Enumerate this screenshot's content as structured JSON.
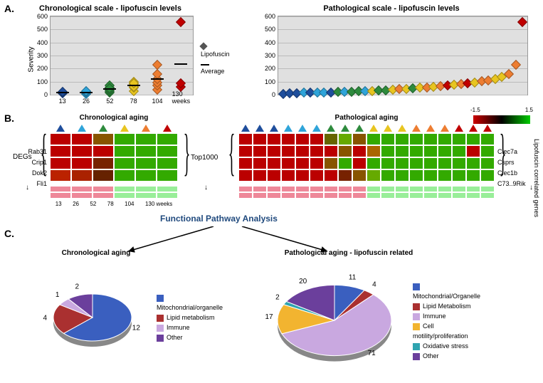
{
  "panels": {
    "a": "A.",
    "b": "B.",
    "c": "C."
  },
  "chartA": {
    "left": {
      "title": "Chronological scale - lipofuscin levels",
      "ylabel": "Severity",
      "ylim": [
        0,
        600
      ],
      "ystep": 100,
      "x_categories": [
        "13",
        "26",
        "52",
        "78",
        "104",
        "130 weeks"
      ],
      "colors": [
        "#1f4e9c",
        "#2fa4d9",
        "#2e8b3d",
        "#e8c520",
        "#ed7d31",
        "#c00000"
      ],
      "points": {
        "0": [
          10,
          14,
          18,
          22
        ],
        "1": [
          8,
          15,
          20,
          25
        ],
        "2": [
          15,
          28,
          40,
          55,
          70,
          48
        ],
        "3": [
          30,
          55,
          80,
          100,
          60,
          90
        ],
        "4": [
          40,
          70,
          95,
          120,
          160,
          230
        ],
        "5": [
          60,
          90,
          555
        ]
      },
      "averages": [
        16,
        17,
        43,
        70,
        120,
        235
      ],
      "legend": {
        "marker": "Lipofuscin",
        "line": "Average"
      }
    },
    "right": {
      "title": "Pathological scale - lipofuscin levels",
      "ylim": [
        0,
        600
      ],
      "ystep": 100,
      "points": [
        {
          "v": 8,
          "c": "#1f4e9c"
        },
        {
          "v": 10,
          "c": "#1f4e9c"
        },
        {
          "v": 12,
          "c": "#1f4e9c"
        },
        {
          "v": 14,
          "c": "#2fa4d9"
        },
        {
          "v": 14,
          "c": "#1f4e9c"
        },
        {
          "v": 15,
          "c": "#2fa4d9"
        },
        {
          "v": 16,
          "c": "#2fa4d9"
        },
        {
          "v": 18,
          "c": "#1f4e9c"
        },
        {
          "v": 20,
          "c": "#2e8b3d"
        },
        {
          "v": 22,
          "c": "#2fa4d9"
        },
        {
          "v": 24,
          "c": "#2e8b3d"
        },
        {
          "v": 26,
          "c": "#2e8b3d"
        },
        {
          "v": 28,
          "c": "#2fa4d9"
        },
        {
          "v": 30,
          "c": "#e8c520"
        },
        {
          "v": 32,
          "c": "#2e8b3d"
        },
        {
          "v": 35,
          "c": "#2e8b3d"
        },
        {
          "v": 38,
          "c": "#e8c520"
        },
        {
          "v": 41,
          "c": "#ed7d31"
        },
        {
          "v": 44,
          "c": "#e8c520"
        },
        {
          "v": 48,
          "c": "#2e8b3d"
        },
        {
          "v": 52,
          "c": "#e8c520"
        },
        {
          "v": 56,
          "c": "#ed7d31"
        },
        {
          "v": 60,
          "c": "#e8c520"
        },
        {
          "v": 65,
          "c": "#ed7d31"
        },
        {
          "v": 70,
          "c": "#c00000"
        },
        {
          "v": 76,
          "c": "#e8c520"
        },
        {
          "v": 82,
          "c": "#ed7d31"
        },
        {
          "v": 88,
          "c": "#c00000"
        },
        {
          "v": 95,
          "c": "#e8c520"
        },
        {
          "v": 102,
          "c": "#ed7d31"
        },
        {
          "v": 110,
          "c": "#ed7d31"
        },
        {
          "v": 120,
          "c": "#e8c520"
        },
        {
          "v": 135,
          "c": "#e8c520"
        },
        {
          "v": 160,
          "c": "#ed7d31"
        },
        {
          "v": 230,
          "c": "#ed7d31"
        },
        {
          "v": 555,
          "c": "#c00000"
        }
      ]
    }
  },
  "panelB": {
    "left_title": "Chronological aging",
    "right_title": "Pathological aging",
    "degs": "DEGs",
    "lipgenes": "Lipofuscin correlated genes",
    "top1000": "Top1000",
    "left_genes": [
      "Rab31",
      "Crip1",
      "Dok2",
      "Fli1"
    ],
    "right_genes": [
      "Clec7a",
      "Csprs",
      "Clec1b",
      "C73..9Rik"
    ],
    "x_labels": [
      "13",
      "26",
      "52",
      "78",
      "104",
      "130 weeks"
    ],
    "tri_colors_left": [
      "#1f4e9c",
      "#2fa4d9",
      "#2e8b3d",
      "#e8c520",
      "#ed7d31",
      "#c00000"
    ],
    "tri_colors_right": [
      "#1f4e9c",
      "#1f4e9c",
      "#1f4e9c",
      "#2fa4d9",
      "#2fa4d9",
      "#2fa4d9",
      "#2e8b3d",
      "#2e8b3d",
      "#2e8b3d",
      "#e8c520",
      "#e8c520",
      "#e8c520",
      "#ed7d31",
      "#ed7d31",
      "#ed7d31",
      "#c00000",
      "#c00000",
      "#c00000"
    ],
    "colorbar": {
      "min": "-1.5",
      "max": "1.5"
    },
    "cell_colors_left": [
      [
        "#b00",
        "#b00",
        "#850",
        "#3a0",
        "#3a0",
        "#3a0"
      ],
      [
        "#b00",
        "#b00",
        "#b00",
        "#3a0",
        "#3a0",
        "#3a0"
      ],
      [
        "#b00",
        "#b00",
        "#720",
        "#3a0",
        "#3a0",
        "#3a0"
      ],
      [
        "#b20",
        "#a20",
        "#620",
        "#3a0",
        "#3a0",
        "#3a0"
      ]
    ],
    "cell_colors_right": [
      [
        "#b00",
        "#b00",
        "#b00",
        "#b00",
        "#b00",
        "#b00",
        "#660",
        "#6a0",
        "#850",
        "#3a0",
        "#3a0",
        "#3a0",
        "#3a0",
        "#3a0",
        "#3a0",
        "#3a0",
        "#3a0",
        "#3a0"
      ],
      [
        "#b00",
        "#b00",
        "#b00",
        "#b00",
        "#b00",
        "#b00",
        "#b00",
        "#850",
        "#b00",
        "#a60",
        "#3a0",
        "#3a0",
        "#3a0",
        "#3a0",
        "#3a0",
        "#3a0",
        "#b00",
        "#3a0"
      ],
      [
        "#b00",
        "#b00",
        "#b00",
        "#b00",
        "#b00",
        "#b00",
        "#850",
        "#3a0",
        "#b00",
        "#3a0",
        "#3a0",
        "#3a0",
        "#3a0",
        "#3a0",
        "#3a0",
        "#3a0",
        "#3a0",
        "#3a0"
      ],
      [
        "#b00",
        "#b00",
        "#b00",
        "#b00",
        "#b00",
        "#b00",
        "#b00",
        "#720",
        "#850",
        "#6a0",
        "#3a0",
        "#3a0",
        "#3a0",
        "#3a0",
        "#3a0",
        "#3a0",
        "#3a0",
        "#3a0"
      ]
    ]
  },
  "panelC": {
    "title": "Functional Pathway Analysis",
    "left_title": "Chronological aging",
    "right_title": "Pathological aging - lipofuscin related",
    "pie_left": {
      "slices": [
        {
          "label": "Mitochondrial/organelle",
          "value": 12,
          "color": "#3a5fbf",
          "show": "12"
        },
        {
          "label": "Lipid metabolism",
          "value": 4,
          "color": "#aa3030",
          "show": "4"
        },
        {
          "label": "Immune",
          "value": 1,
          "color": "#c9a8e0",
          "show": "1"
        },
        {
          "label": "Other",
          "value": 2,
          "color": "#6b3f9c",
          "show": "2"
        }
      ]
    },
    "pie_right": {
      "slices": [
        {
          "label": "Mitochondrial/Organelle",
          "value": 11,
          "color": "#3a5fbf",
          "show": "11"
        },
        {
          "label": "Lipid Metabolism",
          "value": 4,
          "color": "#aa3030",
          "show": "4"
        },
        {
          "label": "Immune",
          "value": 71,
          "color": "#c9a8e0",
          "show": "71"
        },
        {
          "label": "Cell motility/proliferation",
          "value": 17,
          "color": "#f2b430",
          "show": "17"
        },
        {
          "label": "Oxidative stress",
          "value": 2,
          "color": "#2fa4b0",
          "show": "2"
        },
        {
          "label": "Other",
          "value": 20,
          "color": "#6b3f9c",
          "show": "20"
        }
      ]
    }
  }
}
